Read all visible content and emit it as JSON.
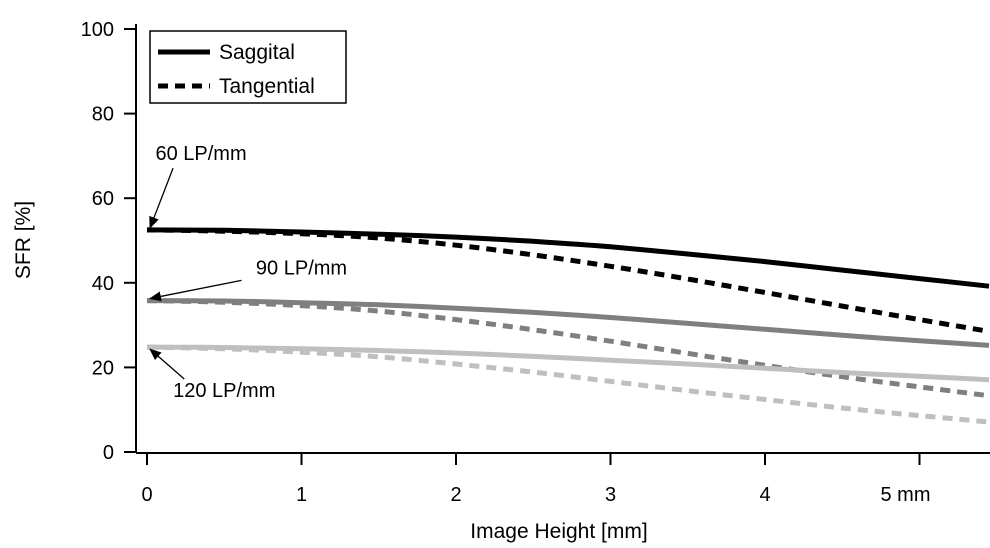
{
  "chart_data": {
    "type": "line",
    "title": "",
    "xlabel": "Image Height [mm]",
    "ylabel": "SFR [%]",
    "xlim": [
      0,
      5.45
    ],
    "ylim": [
      0,
      100
    ],
    "x_ticks": [
      {
        "value": 0,
        "label": "0"
      },
      {
        "value": 1,
        "label": "1"
      },
      {
        "value": 2,
        "label": "2"
      },
      {
        "value": 3,
        "label": "3"
      },
      {
        "value": 4,
        "label": "4"
      },
      {
        "value": 5,
        "label": "5 mm"
      }
    ],
    "y_ticks": [
      {
        "value": 0,
        "label": "0"
      },
      {
        "value": 20,
        "label": "20"
      },
      {
        "value": 40,
        "label": "40"
      },
      {
        "value": 60,
        "label": "60"
      },
      {
        "value": 80,
        "label": "80"
      },
      {
        "value": 100,
        "label": "100"
      }
    ],
    "grid": false,
    "legend": {
      "placement": "top-left",
      "entries": [
        {
          "label": "Saggital",
          "style": "solid"
        },
        {
          "label": "Tangential",
          "style": "dashed"
        }
      ]
    },
    "x": [
      0,
      0.5,
      1,
      1.5,
      2,
      2.5,
      3,
      3.5,
      4,
      4.5,
      5,
      5.45
    ],
    "series": [
      {
        "group": "60 LP/mm",
        "style": "solid",
        "color": "#000000",
        "values": [
          52.5,
          52.4,
          52.0,
          51.5,
          50.8,
          49.8,
          48.5,
          46.8,
          45.0,
          43.0,
          41.0,
          39.2
        ]
      },
      {
        "group": "60 LP/mm",
        "style": "dashed",
        "color": "#000000",
        "values": [
          52.5,
          52.2,
          51.6,
          50.6,
          48.9,
          46.6,
          43.9,
          40.9,
          37.7,
          34.5,
          31.3,
          28.5
        ]
      },
      {
        "group": "90 LP/mm",
        "style": "solid",
        "color": "#7f7f7f",
        "values": [
          35.8,
          35.7,
          35.3,
          34.8,
          34.0,
          33.0,
          31.8,
          30.4,
          29.0,
          27.6,
          26.3,
          25.2
        ]
      },
      {
        "group": "90 LP/mm",
        "style": "dashed",
        "color": "#7f7f7f",
        "values": [
          35.8,
          35.4,
          34.6,
          33.3,
          31.3,
          28.9,
          26.2,
          23.3,
          20.5,
          17.8,
          15.4,
          13.3
        ]
      },
      {
        "group": "120 LP/mm",
        "style": "solid",
        "color": "#bfbfbf",
        "values": [
          24.8,
          24.7,
          24.4,
          24.0,
          23.4,
          22.6,
          21.7,
          20.8,
          19.8,
          18.8,
          17.9,
          17.1
        ]
      },
      {
        "group": "120 LP/mm",
        "style": "dashed",
        "color": "#bfbfbf",
        "values": [
          24.8,
          24.4,
          23.6,
          22.5,
          20.8,
          18.9,
          16.7,
          14.5,
          12.4,
          10.4,
          8.6,
          7.1
        ]
      }
    ],
    "annotations": [
      {
        "text": "60 LP/mm",
        "x": 0,
        "y": 52.5,
        "label_x": 0.35,
        "label_y": 69
      },
      {
        "text": "90 LP/mm",
        "x": 0,
        "y": 35.8,
        "label_x": 1.0,
        "label_y": 42
      },
      {
        "text": "120 LP/mm",
        "x": 0,
        "y": 24.8,
        "label_x": 0.5,
        "label_y": 13
      }
    ]
  }
}
